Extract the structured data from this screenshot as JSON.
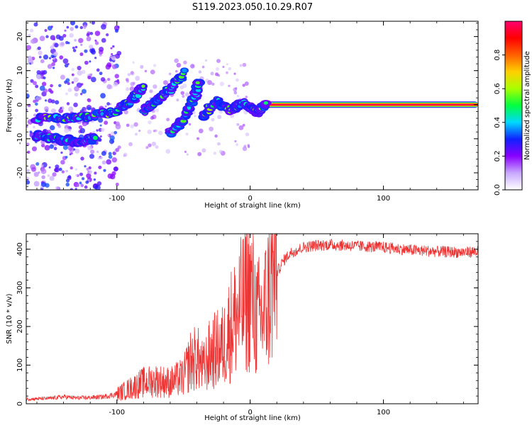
{
  "figure": {
    "title": "S119.2023.050.10.29.R07"
  },
  "chart_data": [
    {
      "type": "heatmap",
      "title": "S119.2023.050.10.29.R07",
      "xlabel": "Height of straight line (km)",
      "ylabel": "Frequency (Hz)",
      "xlim": [
        -168,
        171
      ],
      "ylim": [
        -25,
        24.5
      ],
      "x_ticks": [
        -100,
        0,
        100
      ],
      "x_tick_labels": [
        "-100",
        "0",
        "100"
      ],
      "y_ticks": [
        -20,
        -10,
        0,
        10,
        20
      ],
      "y_tick_labels": [
        "-20",
        "-10",
        "0",
        "10",
        "20"
      ],
      "colorbar": {
        "label": "Normalized spectral amplitude",
        "range": [
          0,
          1
        ],
        "ticks": [
          0.0,
          0.2,
          0.4,
          0.6,
          0.8
        ],
        "tick_labels": [
          "0.0",
          "0.2",
          "0.4",
          "0.6",
          "0.8"
        ],
        "colors": [
          "#ffffff",
          "#c8a8ff",
          "#8a00ff",
          "#1020ff",
          "#00d8ff",
          "#00ff40",
          "#a8ff00",
          "#ffd000",
          "#ff6000",
          "#ff0000",
          "#ff0070"
        ]
      },
      "features": [
        {
          "name": "carrier",
          "x_range": [
            12,
            171
          ],
          "y": 0,
          "amplitude": 1.0
        },
        {
          "name": "band_upper",
          "points": [
            [
              -160,
              -4
            ],
            [
              -140,
              -4
            ],
            [
              -120,
              -3.5
            ],
            [
              -100,
              -2
            ],
            [
              -90,
              1
            ],
            [
              -80,
              5
            ]
          ],
          "amplitude": 0.55
        },
        {
          "name": "band_lower",
          "points": [
            [
              -160,
              -9
            ],
            [
              -145,
              -10
            ],
            [
              -130,
              -11
            ],
            [
              -115,
              -10
            ]
          ],
          "amplitude": 0.45
        },
        {
          "name": "streak_a",
          "points": [
            [
              -80,
              -1.5
            ],
            [
              -70,
              1
            ],
            [
              -60,
              4.5
            ],
            [
              -50,
              9.5
            ]
          ],
          "amplitude": 0.5
        },
        {
          "name": "streak_b",
          "points": [
            [
              -60,
              -8
            ],
            [
              -50,
              -4.5
            ],
            [
              -42,
              2
            ],
            [
              -38,
              7
            ]
          ],
          "amplitude": 0.5
        },
        {
          "name": "streak_c",
          "points": [
            [
              -35,
              -3
            ],
            [
              -25,
              1
            ],
            [
              -15,
              -1.5
            ],
            [
              -5,
              0.5
            ],
            [
              5,
              -2
            ],
            [
              12,
              0
            ]
          ],
          "amplitude": 0.55
        }
      ]
    },
    {
      "type": "line",
      "xlabel": "Height of straight line (km)",
      "ylabel": "SNR (10 * v/v)",
      "xlim": [
        -168,
        171
      ],
      "ylim": [
        0,
        440
      ],
      "x_ticks": [
        -100,
        0,
        100
      ],
      "x_tick_labels": [
        "-100",
        "0",
        "100"
      ],
      "y_ticks": [
        0,
        100,
        200,
        300,
        400
      ],
      "y_tick_labels": [
        "0",
        "100",
        "200",
        "300",
        "400"
      ],
      "color": "#ee3333",
      "series": [
        {
          "x": [
            -168,
            -150,
            -140,
            -130,
            -120,
            -110,
            -100,
            -90,
            -80,
            -70,
            -60,
            -50,
            -45,
            -40,
            -35,
            -30,
            -25,
            -20,
            -15,
            -10,
            -5,
            0,
            5,
            10,
            15,
            20,
            25,
            30,
            40,
            50,
            60,
            80,
            100,
            120,
            140,
            160,
            171
          ],
          "y": [
            12,
            14,
            18,
            15,
            16,
            18,
            25,
            40,
            55,
            60,
            55,
            70,
            110,
            120,
            90,
            130,
            140,
            150,
            200,
            230,
            260,
            300,
            220,
            230,
            300,
            340,
            370,
            390,
            405,
            410,
            412,
            408,
            405,
            398,
            394,
            392,
            394
          ]
        }
      ]
    }
  ]
}
